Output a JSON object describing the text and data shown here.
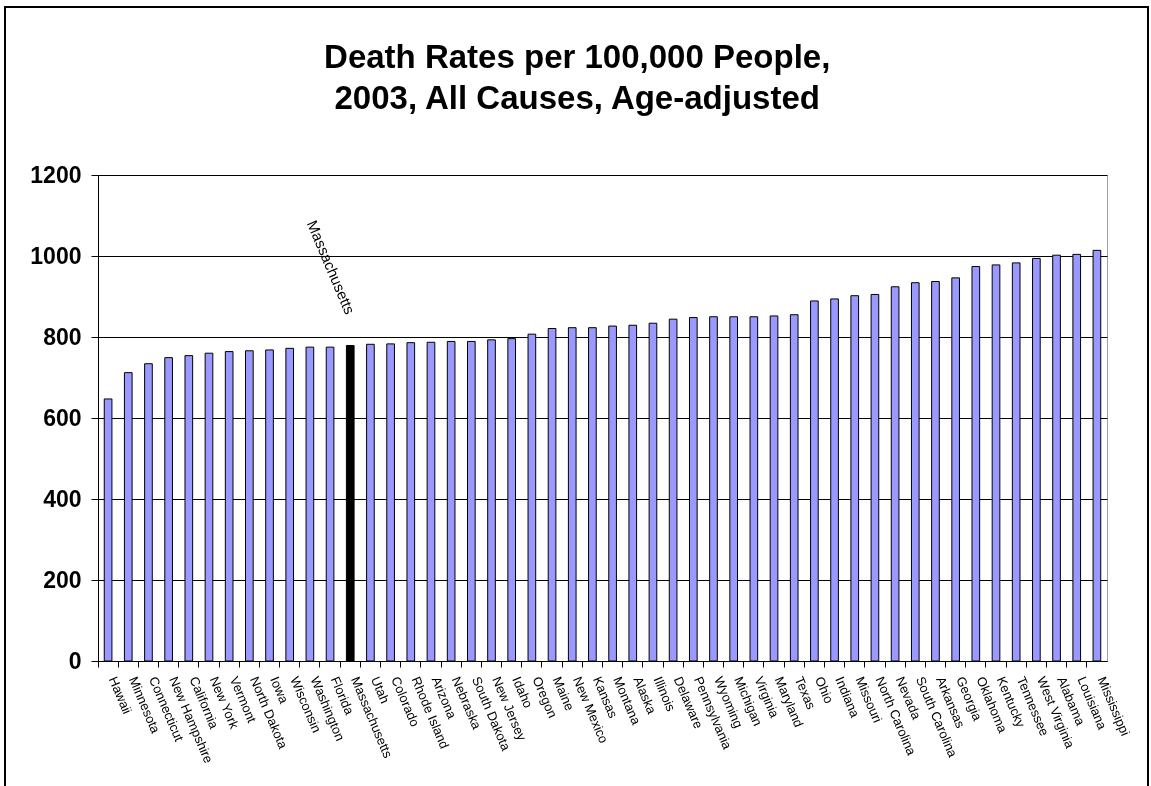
{
  "chart_data": {
    "type": "bar",
    "title": "Death Rates per 100,000 People,\n2003, All Causes, Age-adjusted",
    "categories": [
      "Hawaii",
      "Minnesota",
      "Connecticut",
      "New Hampshire",
      "California",
      "New York",
      "Vermont",
      "North Dakota",
      "Iowa",
      "Wisconsin",
      "Washington",
      "Florida",
      "Massachusetts",
      "Utah",
      "Colorado",
      "Rhode Island",
      "Arizona",
      "Nebraska",
      "South Dakota",
      "New Jersey",
      "Idaho",
      "Oregon",
      "Maine",
      "New Mexico",
      "Kansas",
      "Montana",
      "Alaska",
      "Illinois",
      "Delaware",
      "Pennsylvania",
      "Wyoming",
      "Michigan",
      "Virginia",
      "Maryland",
      "Texas",
      "Ohio",
      "Indiana",
      "Missouri",
      "North Carolina",
      "Nevada",
      "South Carolina",
      "Arkansas",
      "Georgia",
      "Oklahoma",
      "Kentucky",
      "Tennessee",
      "West Virginia",
      "Alabama",
      "Louisiana",
      "Mississippi"
    ],
    "values": [
      647,
      712,
      734,
      749,
      754,
      760,
      764,
      766,
      768,
      772,
      775,
      775,
      779,
      782,
      783,
      786,
      787,
      789,
      789,
      793,
      796,
      807,
      821,
      823,
      823,
      827,
      829,
      834,
      844,
      848,
      850,
      850,
      850,
      852,
      855,
      889,
      894,
      902,
      905,
      924,
      934,
      937,
      946,
      974,
      978,
      983,
      994,
      1002,
      1004,
      1014
    ],
    "colors": [
      "#9999ff",
      "#9999ff",
      "#9999ff",
      "#9999ff",
      "#9999ff",
      "#9999ff",
      "#9999ff",
      "#9999ff",
      "#9999ff",
      "#9999ff",
      "#9999ff",
      "#9999ff",
      "#000000",
      "#9999ff",
      "#9999ff",
      "#9999ff",
      "#9999ff",
      "#9999ff",
      "#9999ff",
      "#9999ff",
      "#9999ff",
      "#9999ff",
      "#9999ff",
      "#9999ff",
      "#9999ff",
      "#9999ff",
      "#9999ff",
      "#9999ff",
      "#9999ff",
      "#9999ff",
      "#9999ff",
      "#9999ff",
      "#9999ff",
      "#9999ff",
      "#9999ff",
      "#9999ff",
      "#9999ff",
      "#9999ff",
      "#9999ff",
      "#9999ff",
      "#9999ff",
      "#9999ff",
      "#9999ff",
      "#9999ff",
      "#9999ff",
      "#9999ff",
      "#9999ff",
      "#9999ff",
      "#9999ff",
      "#9999ff"
    ],
    "ylim": [
      0,
      1200
    ],
    "yticks": [
      0,
      200,
      400,
      600,
      800,
      1000,
      1200
    ],
    "grid": "y",
    "annotations": [
      "Massachusetts"
    ]
  }
}
